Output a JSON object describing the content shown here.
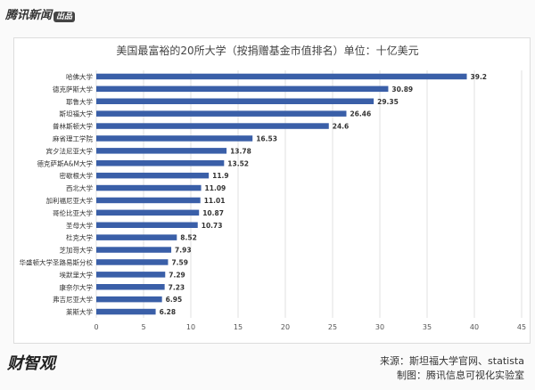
{
  "header": {
    "logo": "腾讯新闻",
    "logo_badge": "出品"
  },
  "chart_data": {
    "type": "bar",
    "orientation": "horizontal",
    "title": "美国最富裕的20所大学（按捐赠基金市值排名）单位：十亿美元",
    "categories": [
      "哈佛大学",
      "德克萨斯大学",
      "耶鲁大学",
      "斯坦福大学",
      "普林斯顿大学",
      "麻省理工学院",
      "宾夕法尼亚大学",
      "德克萨斯A&M大学",
      "密歇根大学",
      "西北大学",
      "加利福尼亚大学",
      "哥伦比亚大学",
      "圣母大学",
      "杜克大学",
      "芝加哥大学",
      "华盛顿大学圣路易斯分校",
      "埃默里大学",
      "康奈尔大学",
      "弗吉尼亚大学",
      "莱斯大学"
    ],
    "values": [
      39.2,
      30.89,
      29.35,
      26.46,
      24.6,
      16.53,
      13.78,
      13.52,
      11.9,
      11.09,
      11.01,
      10.87,
      10.73,
      8.52,
      7.93,
      7.59,
      7.29,
      7.23,
      6.95,
      6.28
    ],
    "labels": [
      "39.2",
      "30.89",
      "29.35",
      "26.46",
      "24.6",
      "16.53",
      "13.78",
      "13.52",
      "11.9",
      "11.09",
      "11.01",
      "10.87",
      "10.73",
      "8.52",
      "7.93",
      "7.59",
      "7.29",
      "7.23",
      "6.95",
      "6.28"
    ],
    "xlim": [
      0,
      45
    ],
    "xticks": [
      "0",
      "5",
      "10",
      "15",
      "20",
      "25",
      "30",
      "35",
      "40",
      "45"
    ],
    "grid": true,
    "bar_color": "#3a5fa8"
  },
  "footer": {
    "brand": "财智观",
    "source": "来源：斯坦福大学官网、statista",
    "maker": "制图：腾讯信息可视化实验室"
  }
}
